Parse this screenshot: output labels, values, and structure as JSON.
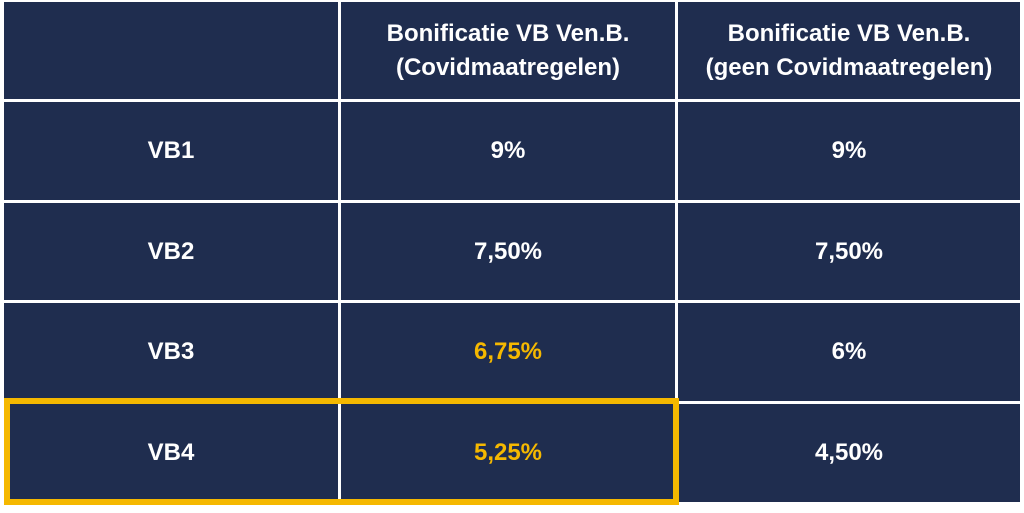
{
  "table": {
    "headers": [
      "",
      "Bonificatie VB Ven.B.\n(Covidmaatregelen)",
      "Bonificatie VB Ven.B.\n(geen Covidmaatregelen)"
    ],
    "rows": [
      {
        "label": "VB1",
        "covid": "9%",
        "geen_covid": "9%"
      },
      {
        "label": "VB2",
        "covid": "7,50%",
        "geen_covid": "7,50%"
      },
      {
        "label": "VB3",
        "covid": "6,75%",
        "geen_covid": "6%"
      },
      {
        "label": "VB4",
        "covid": "5,25%",
        "geen_covid": "4,50%"
      }
    ]
  },
  "colors": {
    "cell_background": "#1f2d4f",
    "text": "#ffffff",
    "highlight": "#f5b800",
    "grid_lines": "#ffffff"
  }
}
